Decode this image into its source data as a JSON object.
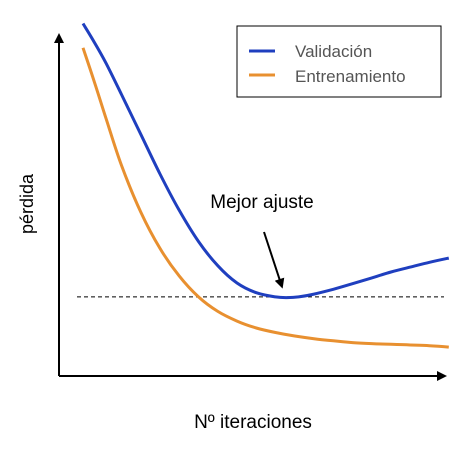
{
  "chart_data": {
    "type": "line",
    "title": "",
    "xlabel": "Nº iteraciones",
    "ylabel": "pérdida",
    "x_ticks": "none",
    "y_ticks": "none",
    "grid": false,
    "legend_placement": "top-right",
    "annotation": "Mejor ajuste",
    "best_fit_x": 5.3,
    "reference_line_y": 2.2,
    "series": [
      {
        "name": "Validación",
        "color": "#1f3fbf",
        "x": [
          0,
          0.3,
          0.6,
          1,
          1.5,
          2,
          2.5,
          3,
          3.5,
          4,
          4.5,
          5,
          5.3,
          5.6,
          6,
          6.5,
          7,
          7.5,
          8,
          8.5,
          9,
          9.5
        ],
        "y": [
          10.1,
          9.55,
          8.95,
          8.05,
          6.9,
          5.75,
          4.7,
          3.8,
          3.1,
          2.6,
          2.32,
          2.2,
          2.18,
          2.2,
          2.28,
          2.42,
          2.58,
          2.75,
          2.92,
          3.06,
          3.2,
          3.32
        ]
      },
      {
        "name": "Entrenamiento",
        "color": "#e89030",
        "x": [
          0,
          0.3,
          0.6,
          1,
          1.5,
          2,
          2.5,
          3,
          3.5,
          4,
          4.5,
          5,
          5.5,
          6,
          6.5,
          7,
          7.5,
          8,
          8.5,
          9,
          9.5
        ],
        "y": [
          9.4,
          8.4,
          7.35,
          6.0,
          4.65,
          3.6,
          2.8,
          2.2,
          1.78,
          1.5,
          1.3,
          1.17,
          1.07,
          0.99,
          0.93,
          0.88,
          0.85,
          0.83,
          0.81,
          0.79,
          0.75
        ]
      }
    ]
  }
}
